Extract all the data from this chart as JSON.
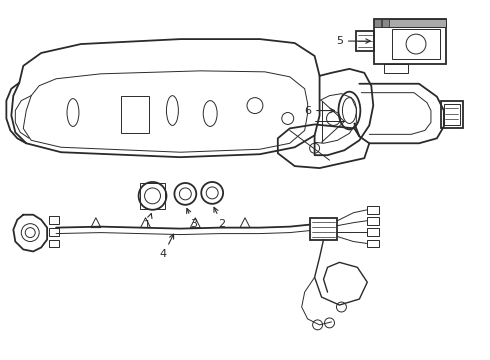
{
  "background_color": "#ffffff",
  "line_color": "#2a2a2a",
  "lw_main": 1.3,
  "lw_thin": 0.7,
  "lw_med": 1.0,
  "label_fontsize": 8,
  "figsize": [
    4.9,
    3.6
  ],
  "dpi": 100
}
